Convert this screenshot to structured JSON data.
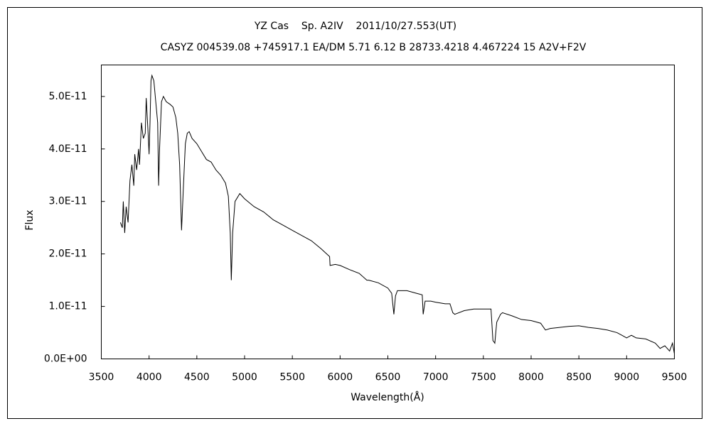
{
  "chart_data": {
    "type": "line",
    "title": "YZ Cas    Sp. A2IV    2011/10/27.553(UT)",
    "subtitle": "CASYZ 004539.08 +745917.1 EA/DM 5.71 6.12 B 28733.4218 4.467224 15 A2V+F2V",
    "x_label": "Wavelength(Å)",
    "y_label": "Flux",
    "xlim": [
      3500,
      9500
    ],
    "xticks": [
      3500,
      4000,
      4500,
      5000,
      5500,
      6000,
      6500,
      7000,
      7500,
      8000,
      8500,
      9000,
      9500
    ],
    "ylim": [
      0,
      5.6e-11
    ],
    "yticks": [
      {
        "value": 0,
        "label": "0.0E+00"
      },
      {
        "value": 1e-11,
        "label": "1.0E-11"
      },
      {
        "value": 2e-11,
        "label": "2.0E-11"
      },
      {
        "value": 3e-11,
        "label": "3.0E-11"
      },
      {
        "value": 4e-11,
        "label": "4.0E-11"
      },
      {
        "value": 5e-11,
        "label": "5.0E-11"
      }
    ],
    "grid": false,
    "color": "#000000",
    "x": [
      3700,
      3720,
      3730,
      3745,
      3760,
      3780,
      3800,
      3820,
      3840,
      3850,
      3870,
      3890,
      3900,
      3920,
      3940,
      3960,
      3970,
      3990,
      4000,
      4010,
      4020,
      4030,
      4050,
      4070,
      4090,
      4100,
      4110,
      4130,
      4150,
      4180,
      4220,
      4250,
      4280,
      4300,
      4320,
      4340,
      4360,
      4380,
      4400,
      4420,
      4450,
      4500,
      4550,
      4600,
      4650,
      4700,
      4750,
      4800,
      4830,
      4850,
      4861,
      4875,
      4900,
      4950,
      5000,
      5100,
      5200,
      5300,
      5400,
      5500,
      5600,
      5700,
      5800,
      5890,
      5895,
      5950,
      6000,
      6100,
      6200,
      6280,
      6300,
      6400,
      6500,
      6540,
      6563,
      6580,
      6600,
      6700,
      6800,
      6860,
      6870,
      6890,
      6950,
      7000,
      7100,
      7150,
      7180,
      7200,
      7300,
      7400,
      7500,
      7580,
      7600,
      7620,
      7640,
      7680,
      7700,
      7800,
      7900,
      8000,
      8100,
      8150,
      8200,
      8300,
      8400,
      8500,
      8600,
      8700,
      8800,
      8900,
      8950,
      9000,
      9050,
      9100,
      9200,
      9300,
      9350,
      9400,
      9450,
      9480,
      9500
    ],
    "values": [
      2.6e-11,
      2.5e-11,
      3e-11,
      2.4e-11,
      2.9e-11,
      2.6e-11,
      3.4e-11,
      3.7e-11,
      3.3e-11,
      3.9e-11,
      3.6e-11,
      4e-11,
      3.7e-11,
      4.5e-11,
      4.2e-11,
      4.3e-11,
      4.97e-11,
      4.3e-11,
      3.9e-11,
      4.5e-11,
      5.3e-11,
      5.4e-11,
      5.3e-11,
      4.9e-11,
      4.5e-11,
      3.3e-11,
      4e-11,
      4.9e-11,
      5e-11,
      4.9e-11,
      4.85e-11,
      4.8e-11,
      4.6e-11,
      4.3e-11,
      3.7e-11,
      2.45e-11,
      3.3e-11,
      4.1e-11,
      4.3e-11,
      4.33e-11,
      4.2e-11,
      4.1e-11,
      3.95e-11,
      3.8e-11,
      3.75e-11,
      3.6e-11,
      3.5e-11,
      3.35e-11,
      3.1e-11,
      2.4e-11,
      1.5e-11,
      2.4e-11,
      3e-11,
      3.15e-11,
      3.05e-11,
      2.9e-11,
      2.8e-11,
      2.65e-11,
      2.55e-11,
      2.45e-11,
      2.35e-11,
      2.25e-11,
      2.1e-11,
      1.95e-11,
      1.78e-11,
      1.8e-11,
      1.78e-11,
      1.7e-11,
      1.63e-11,
      1.5e-11,
      1.5e-11,
      1.45e-11,
      1.35e-11,
      1.25e-11,
      8.5e-12,
      1.2e-11,
      1.3e-11,
      1.3e-11,
      1.25e-11,
      1.22e-11,
      8.5e-12,
      1.1e-11,
      1.1e-11,
      1.08e-11,
      1.05e-11,
      1.05e-11,
      8.8e-12,
      8.5e-12,
      9.2e-12,
      9.5e-12,
      9.5e-12,
      9.5e-12,
      3.5e-12,
      3e-12,
      7e-12,
      8.5e-12,
      8.8e-12,
      8.2e-12,
      7.5e-12,
      7.3e-12,
      6.8e-12,
      5.5e-12,
      5.8e-12,
      6e-12,
      6.2e-12,
      6.3e-12,
      6e-12,
      5.8e-12,
      5.5e-12,
      5e-12,
      4.5e-12,
      4e-12,
      4.5e-12,
      4e-12,
      3.8e-12,
      3e-12,
      2e-12,
      2.5e-12,
      1.5e-12,
      3e-12,
      1e-12
    ]
  }
}
